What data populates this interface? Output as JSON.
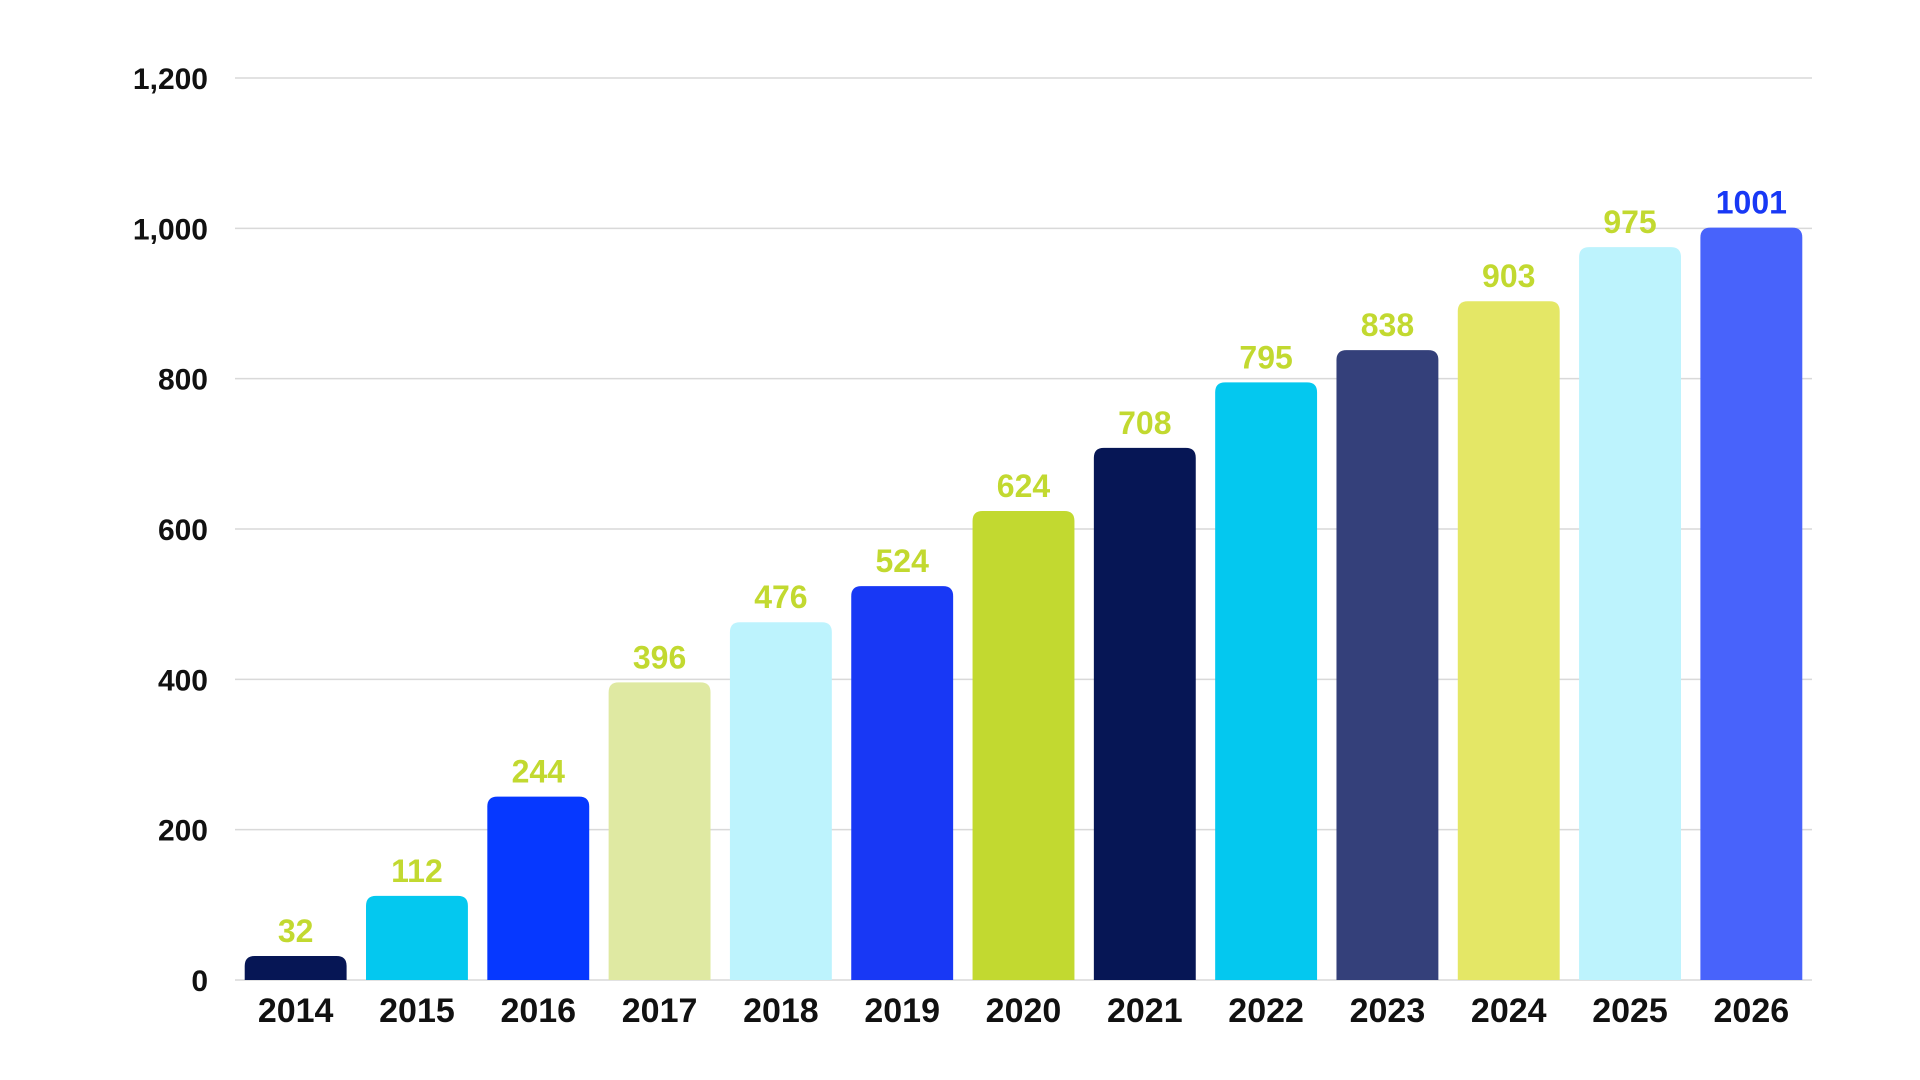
{
  "chart_data": {
    "type": "bar",
    "title": "",
    "xlabel": "",
    "ylabel": "",
    "categories": [
      "2014",
      "2015",
      "2016",
      "2017",
      "2018",
      "2019",
      "2020",
      "2021",
      "2022",
      "2023",
      "2024",
      "2025",
      "2026"
    ],
    "values": [
      32,
      112,
      244,
      396,
      476,
      524,
      624,
      708,
      795,
      838,
      903,
      975,
      1001
    ],
    "value_labels": [
      "32",
      "112",
      "244",
      "396",
      "476",
      "524",
      "624",
      "708",
      "795",
      "838",
      "903",
      "975",
      "1001"
    ],
    "ylim": [
      0,
      1200
    ],
    "yticks": [
      0,
      200,
      400,
      600,
      800,
      1000,
      1200
    ],
    "ytick_labels": [
      "0",
      "200",
      "400",
      "600",
      "800",
      "1,000",
      "1,200"
    ],
    "grid": true,
    "legend": "none",
    "bar_colors": [
      "#061655",
      "#04c8ef",
      "#0638ff",
      "#dfe9a2",
      "#bdf3fd",
      "#1838f5",
      "#c2d930",
      "#061655",
      "#04c8ef",
      "#34407a",
      "#e4e766",
      "#bdf3fd",
      "#4863fb"
    ],
    "label_colors": [
      "#c2d930",
      "#c2d930",
      "#c2d930",
      "#c2d930",
      "#c2d930",
      "#c2d930",
      "#c2d930",
      "#c2d930",
      "#c2d930",
      "#c2d930",
      "#c2d930",
      "#c2d930",
      "#1838f5"
    ],
    "gridline_color": "#d9d9d9",
    "text_color": "#111111"
  }
}
